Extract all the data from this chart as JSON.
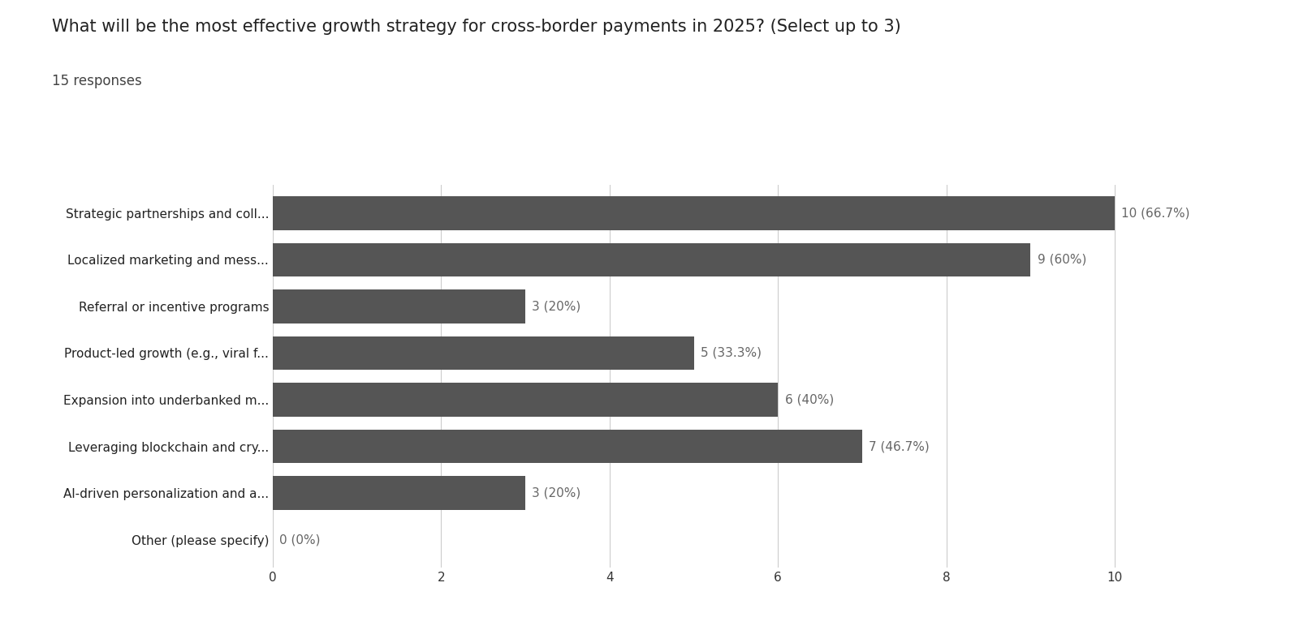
{
  "title": "What will be the most effective growth strategy for cross-border payments in 2025? (Select up to 3)",
  "subtitle": "15 responses",
  "categories": [
    "Strategic partnerships and coll...",
    "Localized marketing and mess...",
    "Referral or incentive programs",
    "Product-led growth (e.g., viral f...",
    "Expansion into underbanked m...",
    "Leveraging blockchain and cry...",
    "Al-driven personalization and a...",
    "Other (please specify)"
  ],
  "values": [
    10,
    9,
    3,
    5,
    6,
    7,
    3,
    0
  ],
  "labels": [
    "10 (66.7%)",
    "9 (60%)",
    "3 (20%)",
    "5 (33.3%)",
    "6 (40%)",
    "7 (46.7%)",
    "3 (20%)",
    "0 (0%)"
  ],
  "bar_color": "#555555",
  "background_color": "#ffffff",
  "xlim": [
    0,
    10.8
  ],
  "xticks": [
    0,
    2,
    4,
    6,
    8,
    10
  ],
  "xtick_labels": [
    "0",
    "2",
    "4",
    "6",
    "8",
    "10"
  ],
  "title_fontsize": 15,
  "subtitle_fontsize": 12,
  "label_fontsize": 11,
  "tick_fontsize": 11,
  "bar_height": 0.72,
  "grid_color": "#cccccc"
}
